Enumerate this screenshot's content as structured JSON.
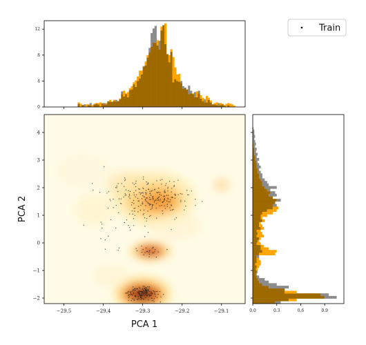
{
  "colors": {
    "gray": "#8c8c8c",
    "orange": "#ffa500",
    "overlap": "#9e6a00",
    "points": "#222222"
  },
  "legend": {
    "label": "Train",
    "marker": "dot",
    "placement": "top-right"
  },
  "chart_data": [
    {
      "type": "heatmap",
      "role": "main-joint-density-with-scatter",
      "xlabel": "PCA 1",
      "ylabel": "PCA 2",
      "xlim": [
        -29.55,
        -29.04
      ],
      "ylim": [
        -2.2,
        4.65
      ],
      "xticks": [
        -29.5,
        -29.4,
        -29.3,
        -29.2,
        -29.1
      ],
      "xtick_labels": [
        "−29.5",
        "−29.4",
        "−29.3",
        "−29.2",
        "−29.1"
      ],
      "yticks": [
        -2,
        -1,
        0,
        1,
        2,
        3,
        4
      ],
      "ytick_labels": [
        "−2",
        "−1",
        "0",
        "1",
        "2",
        "3",
        "4"
      ],
      "density_clusters": [
        {
          "x": -29.3,
          "y": -1.85,
          "intensity": 1.0
        },
        {
          "x": -29.28,
          "y": -0.3,
          "intensity": 0.75
        },
        {
          "x": -29.27,
          "y": 1.6,
          "intensity": 0.7
        },
        {
          "x": -29.34,
          "y": 2.1,
          "intensity": 0.4
        },
        {
          "x": -29.1,
          "y": 2.1,
          "intensity": 0.3
        }
      ],
      "scatter_series": "Train"
    },
    {
      "type": "bar",
      "role": "top-marginal-histogram-PCA1",
      "xlim": [
        -29.55,
        -29.04
      ],
      "ylim": [
        0,
        13.3
      ],
      "yticks": [
        0,
        4,
        8,
        12
      ],
      "ytick_labels": [
        "0",
        "4",
        "8",
        "12"
      ],
      "bins": {
        "start": -29.55,
        "end": -29.04,
        "count": 102
      },
      "series": [
        {
          "color": "gray",
          "values": [
            0,
            0,
            0,
            0,
            0,
            0,
            0,
            0,
            0,
            0,
            0,
            0,
            0,
            0,
            0,
            0,
            0,
            0.5,
            0,
            0.3,
            0.4,
            0,
            0.3,
            0.6,
            0,
            0.4,
            0.5,
            0.4,
            0,
            0.6,
            0.6,
            0.4,
            0.9,
            0.8,
            0.8,
            0.9,
            1.1,
            0.9,
            1.2,
            2.4,
            1.6,
            2.0,
            1.5,
            2.6,
            2.7,
            3.5,
            3.1,
            4.0,
            4.4,
            5.0,
            6.3,
            6.4,
            7.6,
            9.1,
            11.4,
            12.1,
            12.5,
            9.5,
            10.2,
            11.8,
            12.6,
            9.7,
            8.1,
            6.9,
            8.5,
            3.8,
            4.3,
            4.0,
            3.9,
            4.0,
            3.2,
            3.0,
            2.7,
            3.3,
            2.5,
            2.0,
            2.3,
            1.5,
            2.5,
            1.3,
            0.9,
            1.2,
            0.7,
            1.1,
            0.7,
            0.4,
            0.4,
            0.3,
            0.6,
            0.3,
            0.4,
            0.2,
            0,
            0.3,
            0,
            0,
            0,
            0,
            0,
            0,
            0,
            0
          ]
        },
        {
          "color": "orange",
          "values": [
            0,
            0,
            0,
            0,
            0,
            0,
            0,
            0,
            0,
            0,
            0,
            0,
            0,
            0,
            0,
            0,
            0,
            0.7,
            0.5,
            0.3,
            0,
            0.4,
            0.4,
            0.2,
            0.3,
            0.5,
            0.6,
            0.6,
            0.7,
            0.5,
            0.4,
            0.6,
            0.8,
            1.1,
            0.8,
            1.1,
            0.8,
            0.9,
            1.3,
            2.0,
            2.5,
            2.1,
            2.3,
            2.9,
            3.2,
            3.8,
            4.1,
            4.7,
            5.6,
            5.6,
            6.2,
            7.0,
            8.0,
            8.4,
            9.3,
            9.9,
            9.9,
            10.3,
            8.9,
            12.4,
            12.6,
            12.9,
            8.2,
            8.0,
            8.9,
            7.7,
            6.1,
            5.0,
            5.1,
            3.7,
            2.8,
            2.9,
            2.7,
            2.0,
            2.1,
            2.1,
            1.5,
            2.4,
            2.1,
            1.8,
            1.4,
            0.7,
            1.7,
            1.4,
            1.0,
            0.4,
            0.6,
            0.7,
            0.2,
            0.6,
            0.5,
            0.3,
            0.5,
            0.6,
            0.5,
            0.4,
            0.2,
            0,
            0,
            0,
            0,
            0
          ]
        }
      ]
    },
    {
      "type": "bar",
      "role": "right-marginal-histogram-PCA2",
      "orientation": "horizontal",
      "xlim": [
        0,
        1.14
      ],
      "xticks": [
        0,
        0.3,
        0.6,
        0.9
      ],
      "xtick_labels": [
        "0.0",
        "0.3",
        "0.6",
        "0.9"
      ],
      "bins": {
        "start": -2.2,
        "end": 4.65,
        "count": 74
      },
      "series": [
        {
          "color": "gray",
          "values": [
            0.35,
            0.45,
            1.05,
            0.95,
            0.4,
            0.4,
            0.45,
            0.3,
            0.2,
            0.15,
            0.08,
            0.05,
            0.06,
            0.04,
            0.05,
            0.03,
            0.05,
            0.05,
            0.08,
            0.08,
            0.12,
            0.1,
            0.1,
            0.05,
            0.06,
            0.08,
            0.05,
            0.06,
            0.05,
            0.1,
            0.08,
            0.08,
            0.12,
            0.1,
            0.1,
            0.12,
            0.18,
            0.25,
            0.3,
            0.28,
            0.35,
            0.25,
            0.3,
            0.28,
            0.22,
            0.3,
            0.2,
            0.18,
            0.15,
            0.12,
            0.12,
            0.1,
            0.08,
            0.1,
            0.08,
            0.06,
            0.08,
            0.05,
            0.06,
            0.04,
            0.05,
            0.03,
            0.04,
            0.03,
            0.02,
            0.03,
            0.02,
            0.02,
            0.01,
            0,
            0,
            0,
            0,
            0
          ]
        },
        {
          "color": "orange",
          "values": [
            0.28,
            0.55,
            0.9,
            0.85,
            0.55,
            0.4,
            0.2,
            0.12,
            0.08,
            0.06,
            0.05,
            0.04,
            0.05,
            0.06,
            0.08,
            0.1,
            0.1,
            0.08,
            0.05,
            0.28,
            0.3,
            0.2,
            0.14,
            0.1,
            0.08,
            0.1,
            0.14,
            0.12,
            0.1,
            0.14,
            0.12,
            0.1,
            0.15,
            0.12,
            0.18,
            0.25,
            0.3,
            0.32,
            0.25,
            0.28,
            0.3,
            0.25,
            0.2,
            0.22,
            0.18,
            0.15,
            0.12,
            0.12,
            0.1,
            0.08,
            0.08,
            0.06,
            0.06,
            0.05,
            0.05,
            0.04,
            0.03,
            0.03,
            0.02,
            0.02,
            0.02,
            0.01,
            0.01,
            0,
            0,
            0,
            0,
            0,
            0,
            0,
            0,
            0,
            0,
            0
          ]
        }
      ]
    }
  ]
}
